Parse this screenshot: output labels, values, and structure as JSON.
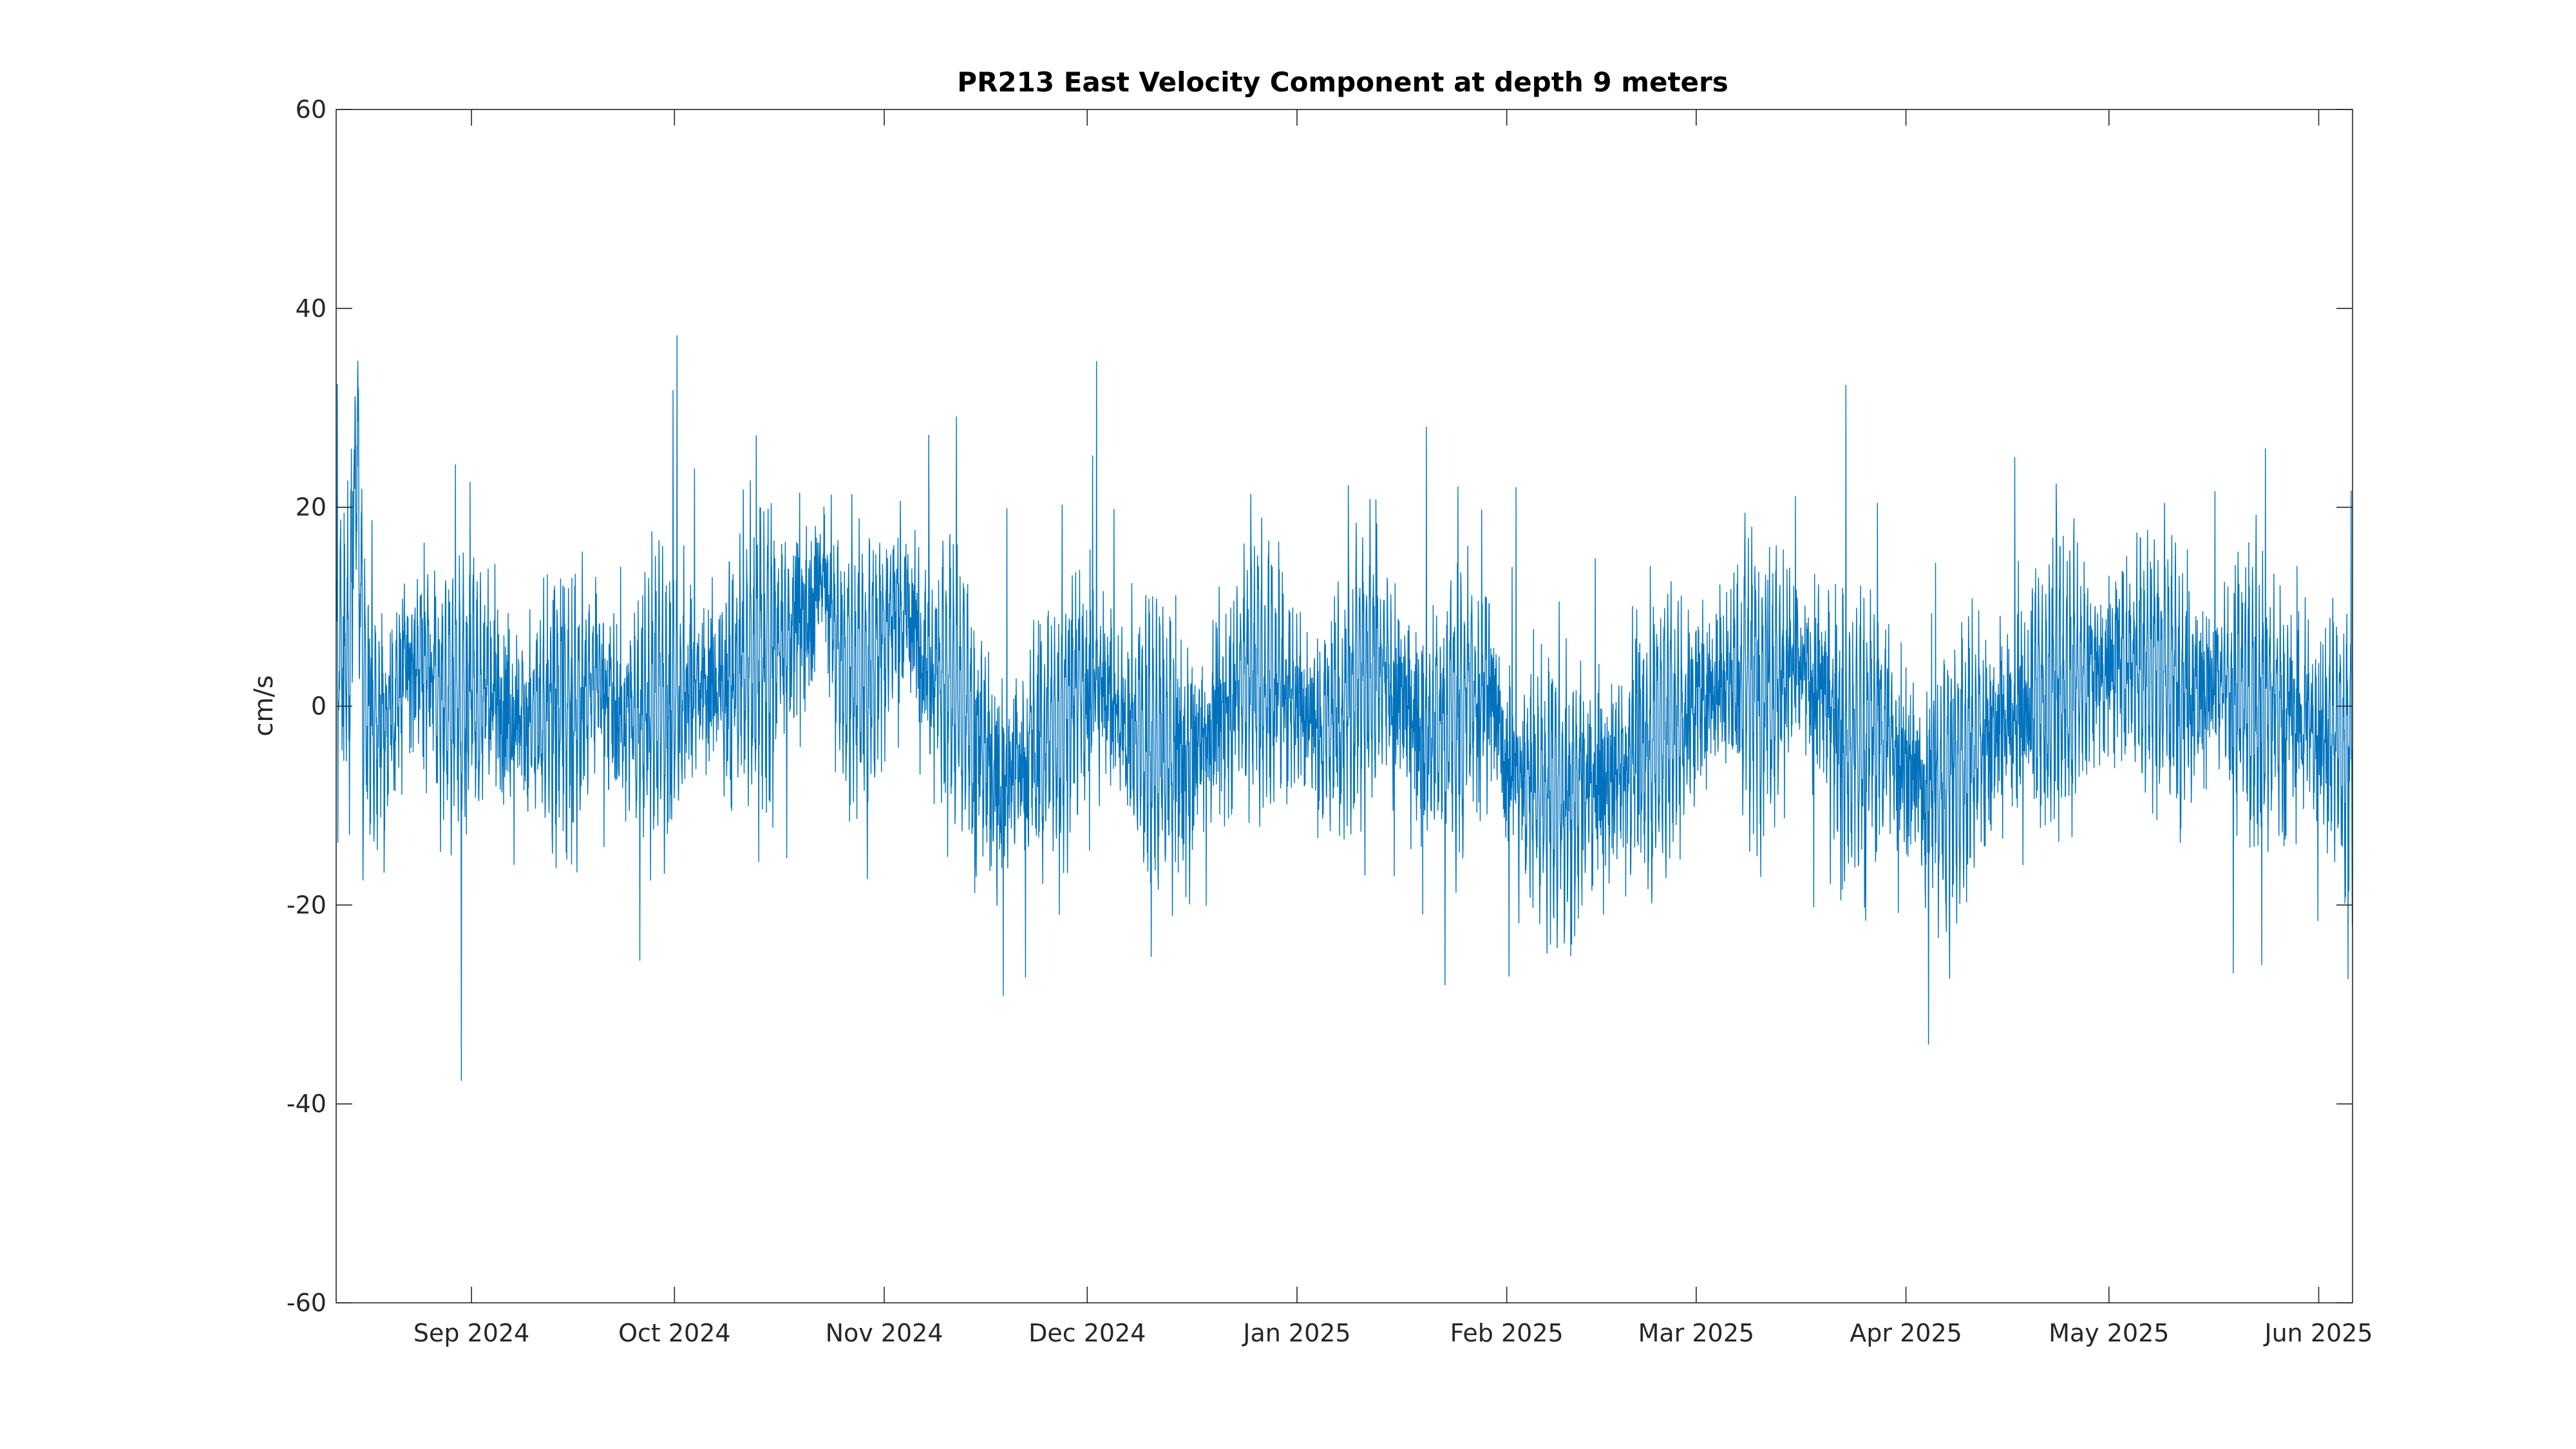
{
  "chart_data": {
    "type": "line",
    "title": "PR213 East Velocity Component at depth 9 meters",
    "xlabel": "",
    "ylabel": "cm/s",
    "xlim": [
      "2024-08-12",
      "2025-06-06"
    ],
    "ylim": [
      -60,
      60
    ],
    "grid": false,
    "legend": "none",
    "x_ticks": [
      {
        "date": "2024-09-01",
        "label": "Sep 2024"
      },
      {
        "date": "2024-10-01",
        "label": "Oct 2024"
      },
      {
        "date": "2024-11-01",
        "label": "Nov 2024"
      },
      {
        "date": "2024-12-01",
        "label": "Dec 2024"
      },
      {
        "date": "2025-01-01",
        "label": "Jan 2025"
      },
      {
        "date": "2025-02-01",
        "label": "Feb 2025"
      },
      {
        "date": "2025-03-01",
        "label": "Mar 2025"
      },
      {
        "date": "2025-04-01",
        "label": "Apr 2025"
      },
      {
        "date": "2025-05-01",
        "label": "May 2025"
      },
      {
        "date": "2025-06-01",
        "label": "Jun 2025"
      }
    ],
    "y_ticks": [
      {
        "value": 60,
        "label": "60"
      },
      {
        "value": 40,
        "label": "40"
      },
      {
        "value": 20,
        "label": "20"
      },
      {
        "value": 0,
        "label": "0"
      },
      {
        "value": -20,
        "label": "-20"
      },
      {
        "value": -40,
        "label": "-40"
      },
      {
        "value": -60,
        "label": "-60"
      }
    ],
    "series": [
      {
        "color": "#0072BD",
        "x": [
          "2024-08-12",
          "2024-08-14",
          "2024-08-15",
          "2024-08-16",
          "2024-08-19",
          "2024-08-22",
          "2024-08-25",
          "2024-08-28",
          "2024-09-01",
          "2024-09-04",
          "2024-09-07",
          "2024-09-10",
          "2024-09-14",
          "2024-09-17",
          "2024-09-20",
          "2024-09-24",
          "2024-09-27",
          "2024-10-01",
          "2024-10-04",
          "2024-10-08",
          "2024-10-12",
          "2024-10-16",
          "2024-10-19",
          "2024-10-21",
          "2024-10-23",
          "2024-10-25",
          "2024-10-29",
          "2024-11-01",
          "2024-11-03",
          "2024-11-07",
          "2024-11-11",
          "2024-11-15",
          "2024-11-18",
          "2024-11-21",
          "2024-11-25",
          "2024-11-29",
          "2024-12-03",
          "2024-12-07",
          "2024-12-11",
          "2024-12-15",
          "2024-12-20",
          "2024-12-25",
          "2024-12-29",
          "2025-01-01",
          "2025-01-05",
          "2025-01-10",
          "2025-01-15",
          "2025-01-20",
          "2025-01-25",
          "2025-01-29",
          "2025-02-01",
          "2025-02-05",
          "2025-02-10",
          "2025-02-15",
          "2025-02-20",
          "2025-02-25",
          "2025-03-01",
          "2025-03-05",
          "2025-03-10",
          "2025-03-15",
          "2025-03-20",
          "2025-03-24",
          "2025-03-28",
          "2025-04-01",
          "2025-04-04",
          "2025-04-08",
          "2025-04-12",
          "2025-04-16",
          "2025-04-20",
          "2025-04-25",
          "2025-05-01",
          "2025-05-05",
          "2025-05-10",
          "2025-05-15",
          "2025-05-20",
          "2025-05-25",
          "2025-05-30",
          "2025-06-02",
          "2025-06-06"
        ],
        "y": [
          5,
          4,
          28,
          2,
          -3,
          3,
          5,
          0,
          2,
          1,
          0,
          -2,
          -1,
          1,
          3,
          -2,
          0,
          1,
          3,
          2,
          4,
          6,
          9,
          10,
          14,
          6,
          2,
          8,
          10,
          6,
          2,
          -4,
          -8,
          -6,
          -4,
          1,
          3,
          -2,
          -4,
          -6,
          -1,
          4,
          2,
          1,
          -3,
          4,
          2,
          -3,
          -1,
          3,
          -6,
          -8,
          -9,
          -8,
          -4,
          -2,
          0,
          3,
          2,
          4,
          1,
          -4,
          -2,
          -6,
          -9,
          -7,
          -3,
          -2,
          1,
          3,
          4,
          5,
          3,
          2,
          1,
          0,
          -2,
          -3,
          -4
        ]
      }
    ]
  }
}
